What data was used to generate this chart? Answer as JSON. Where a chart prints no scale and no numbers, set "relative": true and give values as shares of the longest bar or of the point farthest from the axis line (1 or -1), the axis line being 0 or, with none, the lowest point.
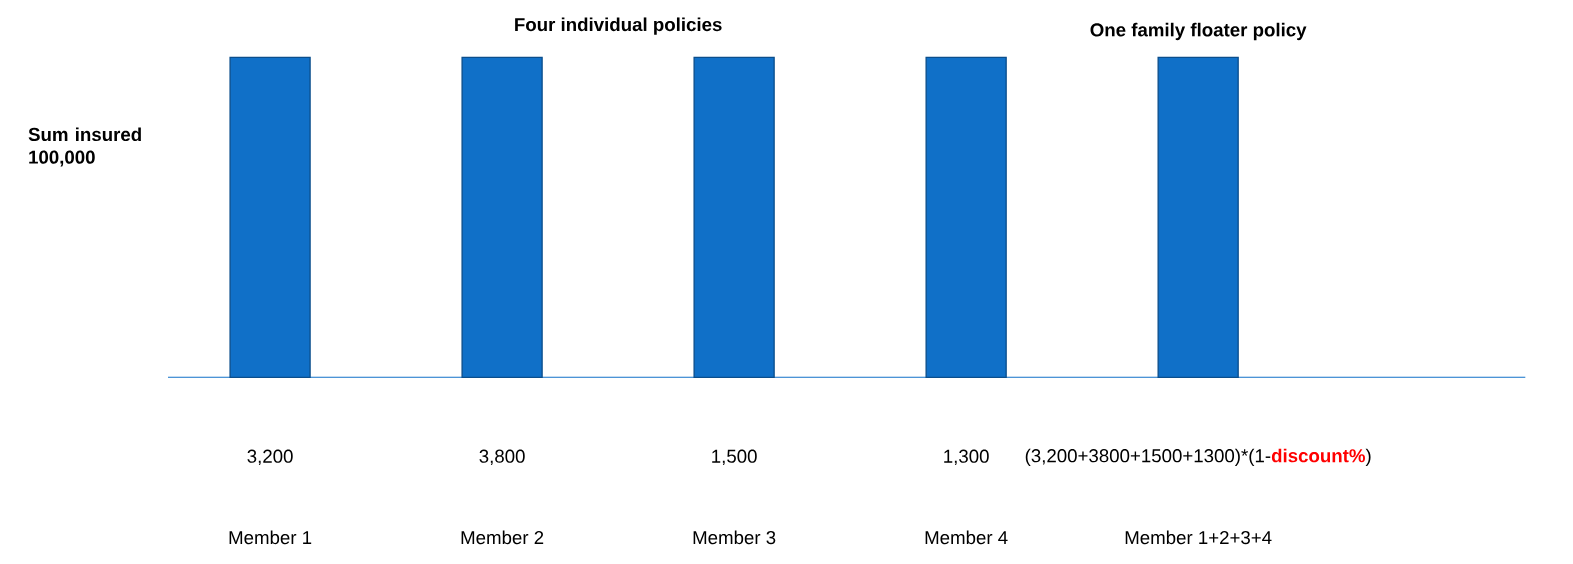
{
  "chart_data": {
    "type": "bar",
    "relative": true,
    "ylabel": "Sum insured 100,000",
    "categories": [
      "Member 1",
      "Member 2",
      "Member 3",
      "Member 4",
      "Member 1+2+3+4"
    ],
    "values": [
      1,
      1,
      1,
      1,
      1
    ],
    "color": "#1070c8",
    "annotations": [
      "Four individual policies",
      "One family floater policy",
      "3,200",
      "3,800",
      "1,500",
      "1,300",
      "(3,200+3800+1500+1300)*(1-**discount%**)"
    ]
  }
}
